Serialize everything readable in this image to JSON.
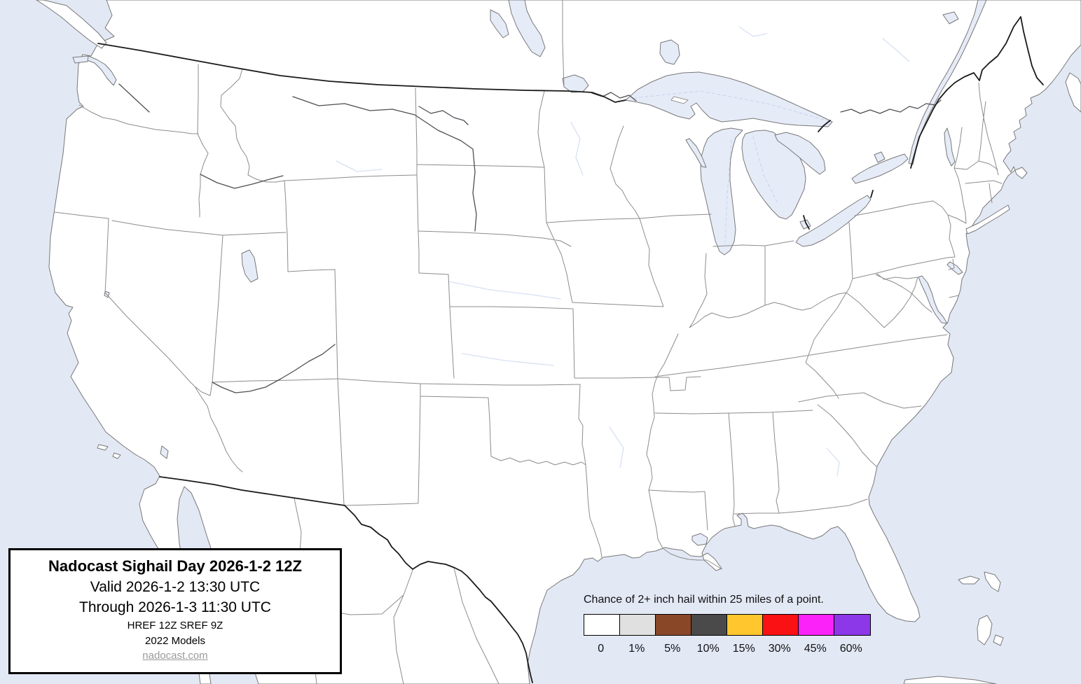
{
  "title_box": {
    "title": "Nadocast Sighail Day 2026-1-2 12Z",
    "valid_line": "Valid 2026-1-2 13:30 UTC",
    "through_line": "Through 2026-1-3 11:30 UTC",
    "models_line": "HREF 12Z SREF 9Z",
    "models_year_line": "2022 Models",
    "site_link": "nadocast.com"
  },
  "legend": {
    "title": "Chance of 2+ inch hail within 25 miles of a point.",
    "items": [
      {
        "label": "0",
        "color": "#FFFFFF"
      },
      {
        "label": "1%",
        "color": "#E0E0E0"
      },
      {
        "label": "5%",
        "color": "#8A4728"
      },
      {
        "label": "10%",
        "color": "#4A4A4A"
      },
      {
        "label": "15%",
        "color": "#FFC62E"
      },
      {
        "label": "30%",
        "color": "#F91114"
      },
      {
        "label": "45%",
        "color": "#FB22F9"
      },
      {
        "label": "60%",
        "color": "#8C37E8"
      }
    ]
  },
  "map": {
    "colors": {
      "ocean": "#E3E8F5",
      "land": "#FFFFFF",
      "lake": "#E6EBF8",
      "coast": "#787878",
      "state_border": "#8C8C8C",
      "country_border": "#1A1A1A",
      "river": "#4E4E55",
      "faint_river": "#D7E1F3",
      "lake_dash": "#C7D3E8"
    }
  }
}
